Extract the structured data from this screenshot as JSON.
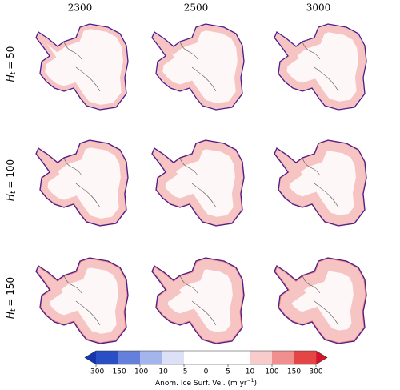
{
  "columns": [
    "2300",
    "2500",
    "3000"
  ],
  "rows": [
    {
      "variable": "H",
      "subscript": "t",
      "text": "= 50"
    },
    {
      "variable": "H",
      "subscript": "t",
      "text": "= 100"
    },
    {
      "variable": "H",
      "subscript": "t",
      "text": "= 150"
    }
  ],
  "colorbar": {
    "label": "Anom. Ice Surf. Vel. (m yr",
    "label_superscript": "−1",
    "label_end": ")",
    "ticks": [
      -300,
      -150,
      -100,
      -10,
      -5,
      0,
      5,
      10,
      100,
      150,
      300
    ],
    "colors": [
      "#2a4fc4",
      "#6580dc",
      "#a4b4ec",
      "#dde1f6",
      "#ffffff",
      "#ffffff",
      "#ffffff",
      "#f9cccc",
      "#f18f8f",
      "#e44545"
    ],
    "extend_colors": [
      "#1636b0",
      "#d4132c"
    ]
  }
}
